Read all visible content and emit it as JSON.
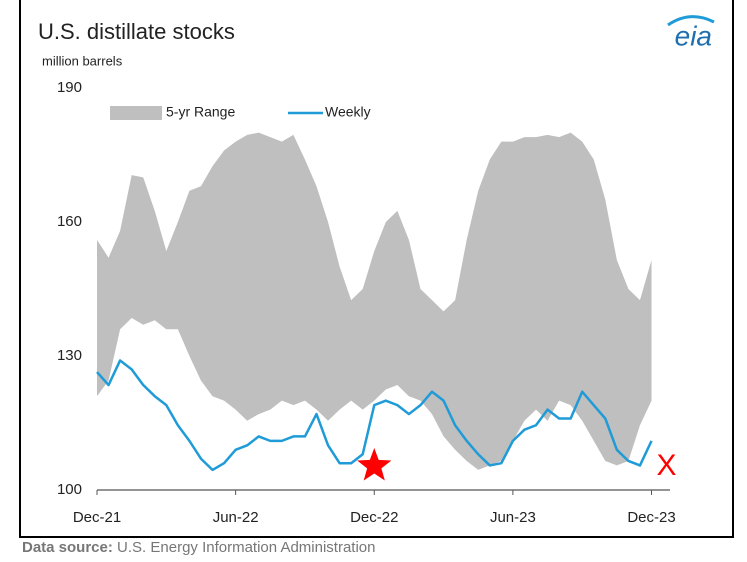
{
  "chart_data": {
    "type": "line",
    "title": "U.S. distillate stocks",
    "subtitle": "million barrels",
    "logo": "eia",
    "source_label": "Data source:",
    "source": "U.S. Energy Information Administration",
    "annotation": "X",
    "x": [
      0,
      0.5,
      1,
      1.5,
      2,
      2.5,
      3,
      3.5,
      4,
      4.5,
      5,
      5.5,
      6,
      6.5,
      7,
      7.5,
      8,
      8.5,
      9,
      9.5,
      10,
      10.5,
      11,
      11.5,
      12,
      12.5,
      13,
      13.5,
      14,
      14.5,
      15,
      15.5,
      16,
      16.5,
      17,
      17.5,
      18,
      18.5,
      19,
      19.5,
      20,
      20.5,
      21,
      21.5,
      22,
      22.5,
      23,
      23.5,
      24
    ],
    "xlim": [
      0,
      24.8
    ],
    "xticks": [
      {
        "value": 0,
        "label": "Dec-21"
      },
      {
        "value": 6,
        "label": "Jun-22"
      },
      {
        "value": 12,
        "label": "Dec-22"
      },
      {
        "value": 18,
        "label": "Jun-23"
      },
      {
        "value": 24,
        "label": "Dec-23"
      }
    ],
    "ylim": [
      100,
      190
    ],
    "yticks": [
      100,
      130,
      160,
      190
    ],
    "legend": "top",
    "series": [
      {
        "name": "5-yr Range",
        "color": "#bfbfbf",
        "kind": "range",
        "low": [
          121,
          124.5,
          136,
          138.5,
          137,
          138,
          136,
          136,
          130,
          124.5,
          121,
          120,
          118,
          115.5,
          117,
          118,
          120,
          119,
          120,
          118,
          115.5,
          118,
          120,
          118,
          120,
          122.5,
          123.5,
          121,
          120,
          117,
          112,
          109,
          106.5,
          104.5,
          105.5,
          106.5,
          111,
          115.5,
          118,
          115.5,
          120,
          119,
          115.5,
          111,
          106.5,
          105.5,
          106.5,
          114.5,
          120
        ],
        "high": [
          156,
          152,
          158,
          170.5,
          170,
          162.5,
          153.5,
          160,
          167,
          168,
          172.5,
          176,
          178,
          179.5,
          180,
          179,
          178,
          179.5,
          174,
          168,
          160,
          150,
          142.5,
          145,
          153.5,
          160,
          162.5,
          156,
          145,
          142.5,
          140,
          142.5,
          156,
          167,
          174,
          178,
          178,
          179,
          179,
          179.5,
          179,
          180,
          178,
          174,
          165,
          151.5,
          145,
          142.5,
          151.5
        ]
      },
      {
        "name": "Weekly",
        "color": "#1f9bd7",
        "kind": "line",
        "values": [
          126.4,
          123.5,
          129,
          127,
          123.5,
          121,
          119,
          114.5,
          111,
          107,
          104.5,
          106,
          109,
          110,
          112,
          111,
          111,
          112,
          112,
          117,
          110,
          106,
          106,
          108,
          119,
          120,
          119,
          117,
          119,
          122,
          120,
          114.5,
          111,
          108,
          105.5,
          106,
          111,
          113.5,
          114.5,
          118,
          116,
          116,
          122,
          119,
          116,
          109,
          106.5,
          105.5,
          111
        ]
      }
    ]
  }
}
